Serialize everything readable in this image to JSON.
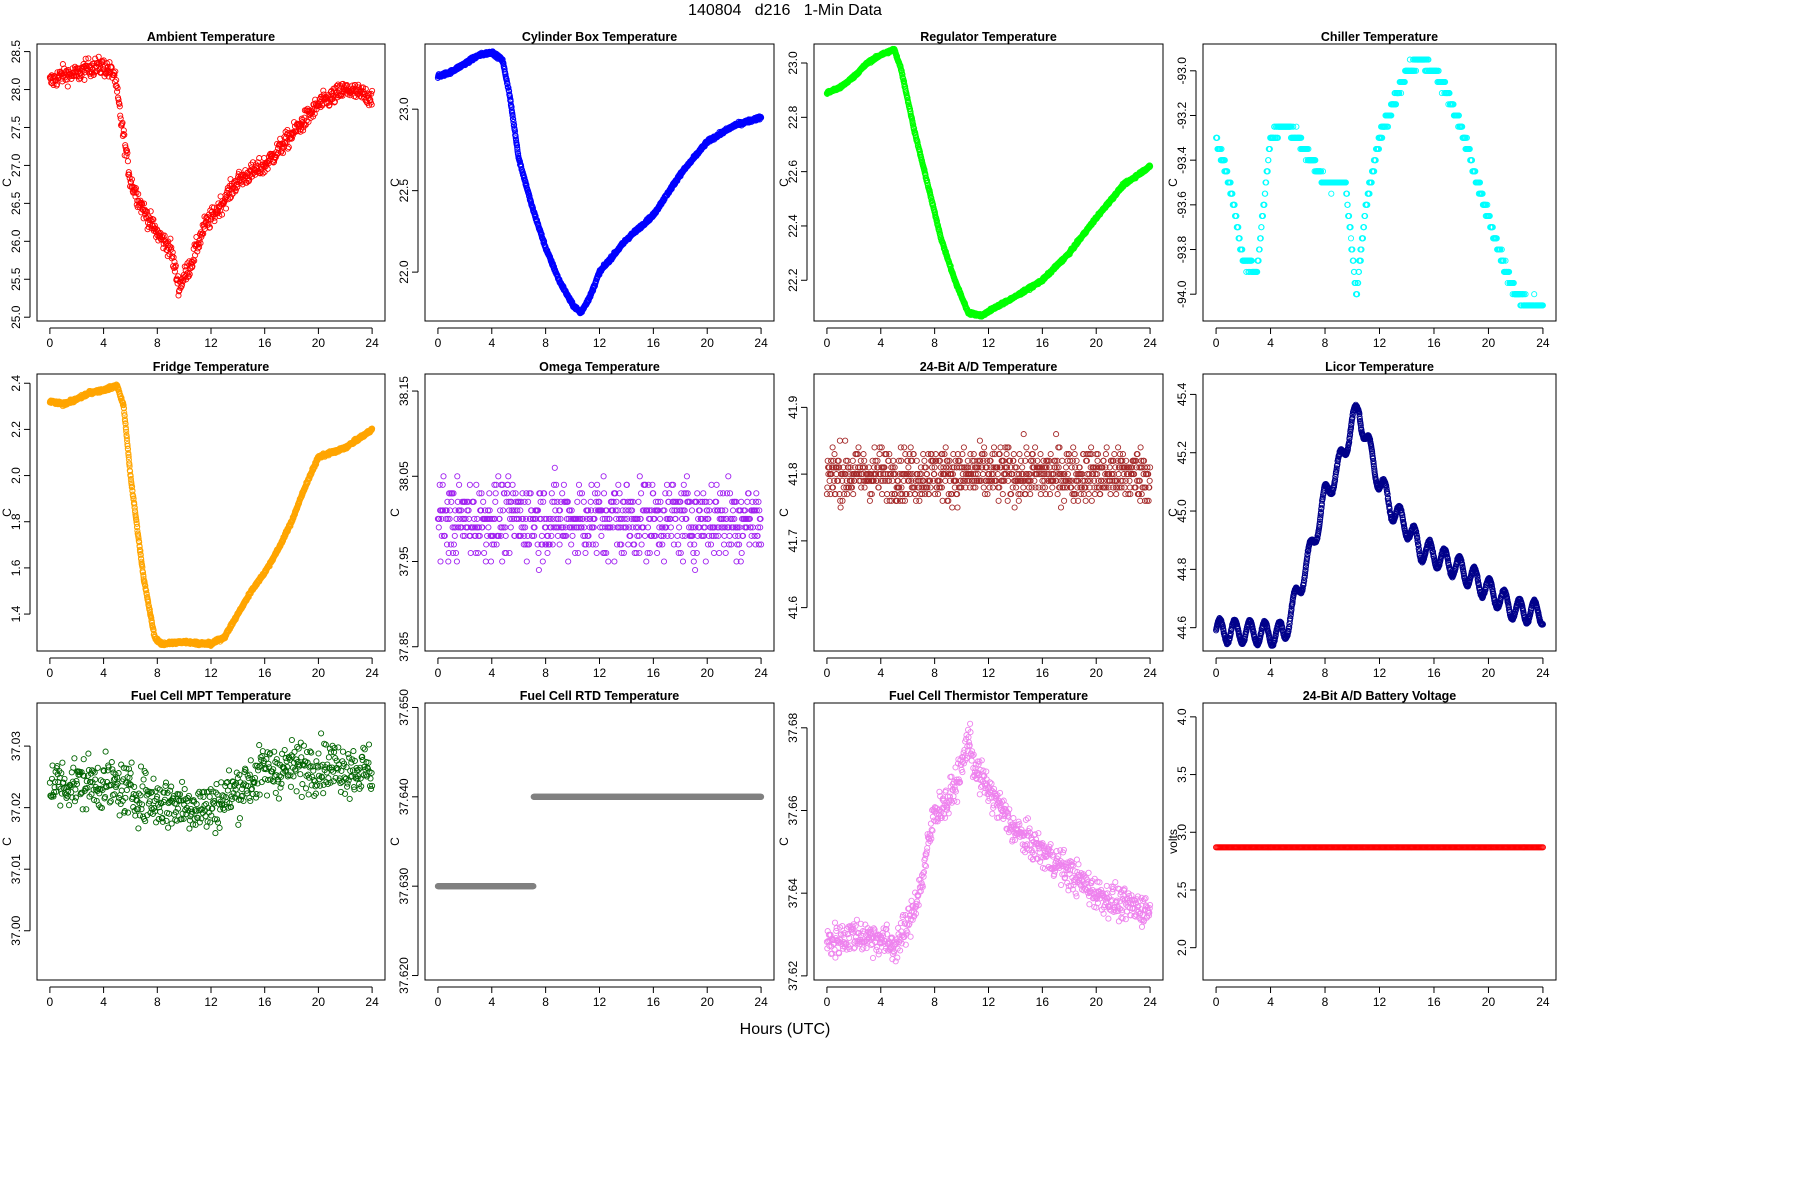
{
  "page": {
    "title": "140804   d216   1-Min Data",
    "xlabel": "Hours (UTC)"
  },
  "chart_data": [
    {
      "type": "scatter",
      "title": "Ambient Temperature",
      "ylabel": "C",
      "color": "#ff0000",
      "xlim": [
        0,
        24
      ],
      "xticks": [
        0,
        4,
        8,
        12,
        16,
        20,
        24
      ],
      "ylim": [
        24.95,
        28.6
      ],
      "yticks": [
        "25.0",
        "25.5",
        "26.0",
        "26.5",
        "27.0",
        "27.5",
        "28.0",
        "28.5"
      ],
      "shape": [
        [
          0,
          28.1
        ],
        [
          1,
          28.2
        ],
        [
          2,
          28.2
        ],
        [
          3,
          28.3
        ],
        [
          4,
          28.3
        ],
        [
          4.8,
          28.2
        ],
        [
          5.3,
          27.6
        ],
        [
          6,
          26.8
        ],
        [
          7,
          26.4
        ],
        [
          8,
          26.1
        ],
        [
          9,
          25.9
        ],
        [
          9.6,
          25.4
        ],
        [
          10.5,
          25.7
        ],
        [
          11.5,
          26.2
        ],
        [
          12,
          26.3
        ],
        [
          14,
          26.8
        ],
        [
          16,
          27.0
        ],
        [
          18,
          27.4
        ],
        [
          20,
          27.8
        ],
        [
          21,
          27.9
        ],
        [
          22,
          28.0
        ],
        [
          24,
          27.9
        ]
      ],
      "noise": 0.12,
      "quantum": 0,
      "n": 720
    },
    {
      "type": "scatter",
      "title": "Cylinder Box Temperature",
      "ylabel": "C",
      "color": "#0000ff",
      "xlim": [
        0,
        24
      ],
      "xticks": [
        0,
        4,
        8,
        12,
        16,
        20,
        24
      ],
      "ylim": [
        21.7,
        23.4
      ],
      "yticks": [
        "22.0",
        "22.5",
        "23.0"
      ],
      "shape": [
        [
          0,
          23.2
        ],
        [
          1,
          23.23
        ],
        [
          2,
          23.28
        ],
        [
          3,
          23.33
        ],
        [
          4,
          23.35
        ],
        [
          4.8,
          23.3
        ],
        [
          5.3,
          23.1
        ],
        [
          6,
          22.7
        ],
        [
          7,
          22.4
        ],
        [
          8,
          22.15
        ],
        [
          9,
          21.95
        ],
        [
          10,
          21.8
        ],
        [
          10.6,
          21.75
        ],
        [
          11.3,
          21.85
        ],
        [
          12,
          22.0
        ],
        [
          14,
          22.2
        ],
        [
          16,
          22.35
        ],
        [
          18,
          22.6
        ],
        [
          20,
          22.8
        ],
        [
          22,
          22.9
        ],
        [
          24,
          22.95
        ]
      ],
      "noise": 0.01,
      "quantum": 0,
      "n": 1440
    },
    {
      "type": "scatter",
      "title": "Regulator Temperature",
      "ylabel": "C",
      "color": "#00ff00",
      "xlim": [
        0,
        24
      ],
      "xticks": [
        0,
        4,
        8,
        12,
        16,
        20,
        24
      ],
      "ylim": [
        22.05,
        23.07
      ],
      "yticks": [
        "22.2",
        "22.4",
        "22.6",
        "22.8",
        "23.0"
      ],
      "shape": [
        [
          0,
          22.89
        ],
        [
          1,
          22.91
        ],
        [
          2,
          22.95
        ],
        [
          3,
          23.0
        ],
        [
          4,
          23.03
        ],
        [
          5,
          23.05
        ],
        [
          5.5,
          22.98
        ],
        [
          6.5,
          22.75
        ],
        [
          7.5,
          22.55
        ],
        [
          8.5,
          22.35
        ],
        [
          9.5,
          22.2
        ],
        [
          10.5,
          22.08
        ],
        [
          11.5,
          22.07
        ],
        [
          12.5,
          22.1
        ],
        [
          14,
          22.14
        ],
        [
          16,
          22.2
        ],
        [
          18,
          22.3
        ],
        [
          20,
          22.43
        ],
        [
          22,
          22.55
        ],
        [
          24,
          22.62
        ]
      ],
      "noise": 0.005,
      "quantum": 0,
      "n": 1440
    },
    {
      "type": "scatter",
      "title": "Chiller Temperature",
      "ylabel": "C",
      "color": "#00ffff",
      "xlim": [
        0,
        24
      ],
      "xticks": [
        0,
        4,
        8,
        12,
        16,
        20,
        24
      ],
      "ylim": [
        -94.12,
        -92.88
      ],
      "yticks": [
        "-94.0",
        "-93.8",
        "-93.6",
        "-93.4",
        "-93.2",
        "-93.0"
      ],
      "shape": [
        [
          0,
          -93.3
        ],
        [
          1,
          -93.5
        ],
        [
          2,
          -93.85
        ],
        [
          3,
          -93.9
        ],
        [
          3.5,
          -93.6
        ],
        [
          4,
          -93.3
        ],
        [
          5,
          -93.25
        ],
        [
          6,
          -93.3
        ],
        [
          7,
          -93.4
        ],
        [
          8,
          -93.5
        ],
        [
          9.5,
          -93.5
        ],
        [
          10.3,
          -94.0
        ],
        [
          11,
          -93.6
        ],
        [
          12,
          -93.3
        ],
        [
          13,
          -93.15
        ],
        [
          14,
          -93.0
        ],
        [
          15,
          -92.95
        ],
        [
          16,
          -93.0
        ],
        [
          17,
          -93.1
        ],
        [
          18,
          -93.25
        ],
        [
          19,
          -93.45
        ],
        [
          20,
          -93.65
        ],
        [
          21,
          -93.85
        ],
        [
          22,
          -94.0
        ],
        [
          23,
          -94.05
        ],
        [
          24,
          -94.05
        ]
      ],
      "noise": 0.02,
      "quantum": 0.05,
      "n": 900
    },
    {
      "type": "scatter",
      "title": "Fridge Temperature",
      "ylabel": "C",
      "color": "#ffa500",
      "xlim": [
        0,
        24
      ],
      "xticks": [
        0,
        4,
        8,
        12,
        16,
        20,
        24
      ],
      "ylim": [
        1.24,
        2.44
      ],
      "yticks": [
        "1.4",
        "1.6",
        "1.8",
        "2.0",
        "2.2",
        "2.4"
      ],
      "shape": [
        [
          0,
          2.32
        ],
        [
          1,
          2.31
        ],
        [
          2,
          2.33
        ],
        [
          3,
          2.36
        ],
        [
          4,
          2.37
        ],
        [
          5,
          2.39
        ],
        [
          5.5,
          2.3
        ],
        [
          6,
          2.0
        ],
        [
          7,
          1.55
        ],
        [
          7.8,
          1.3
        ],
        [
          8.3,
          1.27
        ],
        [
          10,
          1.28
        ],
        [
          12,
          1.27
        ],
        [
          13,
          1.3
        ],
        [
          14,
          1.4
        ],
        [
          15,
          1.5
        ],
        [
          16,
          1.58
        ],
        [
          17,
          1.68
        ],
        [
          18,
          1.8
        ],
        [
          19,
          1.95
        ],
        [
          20,
          2.08
        ],
        [
          21,
          2.1
        ],
        [
          22,
          2.12
        ],
        [
          23,
          2.16
        ],
        [
          24,
          2.2
        ]
      ],
      "noise": 0.007,
      "quantum": 0,
      "n": 1440
    },
    {
      "type": "scatter",
      "title": "Omega Temperature",
      "ylabel": "C",
      "color": "#a020f0",
      "xlim": [
        0,
        24
      ],
      "xticks": [
        0,
        4,
        8,
        12,
        16,
        20,
        24
      ],
      "ylim": [
        37.845,
        38.17
      ],
      "yticks": [
        "37.85",
        "37.95",
        "38.05",
        "38.15"
      ],
      "shape": [
        [
          0,
          38.0
        ],
        [
          24,
          38.0
        ]
      ],
      "noise": 0.045,
      "quantum": 0.01,
      "n": 750
    },
    {
      "type": "scatter",
      "title": "24-Bit A/D Temperature",
      "ylabel": "C",
      "color": "#a52a2a",
      "xlim": [
        0,
        24
      ],
      "xticks": [
        0,
        4,
        8,
        12,
        16,
        20,
        24
      ],
      "ylim": [
        41.535,
        41.95
      ],
      "yticks": [
        "41.6",
        "41.7",
        "41.8",
        "41.9"
      ],
      "shape": [
        [
          0,
          41.8
        ],
        [
          24,
          41.8
        ]
      ],
      "noise": 0.04,
      "quantum": 0.01,
      "n": 850
    },
    {
      "type": "scatter",
      "title": "Licor Temperature",
      "ylabel": "C",
      "color": "#00008b",
      "xlim": [
        0,
        24
      ],
      "xticks": [
        0,
        4,
        8,
        12,
        16,
        20,
        24
      ],
      "ylim": [
        44.52,
        45.47
      ],
      "yticks": [
        "44.6",
        "44.8",
        "45.0",
        "45.2",
        "45.4"
      ],
      "shape": [
        [
          0,
          44.59
        ],
        [
          4,
          44.58
        ],
        [
          5,
          44.58
        ],
        [
          6,
          44.72
        ],
        [
          7,
          44.87
        ],
        [
          8,
          45.05
        ],
        [
          9,
          45.15
        ],
        [
          10,
          45.3
        ],
        [
          10.5,
          45.35
        ],
        [
          11,
          45.25
        ],
        [
          12,
          45.1
        ],
        [
          13,
          45.0
        ],
        [
          14,
          44.95
        ],
        [
          15,
          44.87
        ],
        [
          16,
          44.85
        ],
        [
          18,
          44.8
        ],
        [
          20,
          44.73
        ],
        [
          22,
          44.66
        ],
        [
          24,
          44.65
        ]
      ],
      "wave": 0.04,
      "noise": 0.004,
      "quantum": 0,
      "n": 1440
    },
    {
      "type": "scatter",
      "title": "Fuel Cell MPT Temperature",
      "ylabel": "C",
      "color": "#006400",
      "xlim": [
        0,
        24
      ],
      "xticks": [
        0,
        4,
        8,
        12,
        16,
        20,
        24
      ],
      "ylim": [
        36.992,
        37.037
      ],
      "yticks": [
        "37.00",
        "37.01",
        "37.02",
        "37.03"
      ],
      "shape": [
        [
          0,
          37.024
        ],
        [
          4,
          37.024
        ],
        [
          8,
          37.021
        ],
        [
          12,
          37.02
        ],
        [
          16,
          37.026
        ],
        [
          20,
          37.027
        ],
        [
          24,
          37.026
        ]
      ],
      "noise": 0.0042,
      "quantum": 0,
      "n": 620
    },
    {
      "type": "scatter",
      "title": "Fuel Cell RTD Temperature",
      "ylabel": "C",
      "color": "#808080",
      "xlim": [
        0,
        24
      ],
      "xticks": [
        0,
        4,
        8,
        12,
        16,
        20,
        24
      ],
      "ylim": [
        37.6195,
        37.6505
      ],
      "yticks": [
        "37.620",
        "37.630",
        "37.640",
        "37.650"
      ],
      "shape": [
        [
          0,
          37.63
        ],
        [
          7,
          37.63
        ],
        [
          7.2,
          37.64
        ],
        [
          24,
          37.64
        ]
      ],
      "noise": 0.0005,
      "quantum": 0.01,
      "n": 1000
    },
    {
      "type": "scatter",
      "title": "Fuel Cell Thermistor Temperature",
      "ylabel": "C",
      "color": "#ee82ee",
      "xlim": [
        0,
        24
      ],
      "xticks": [
        0,
        4,
        8,
        12,
        16,
        20,
        24
      ],
      "ylim": [
        37.619,
        37.686
      ],
      "yticks": [
        "37.62",
        "37.64",
        "37.66",
        "37.68"
      ],
      "shape": [
        [
          0,
          37.628
        ],
        [
          2,
          37.63
        ],
        [
          4,
          37.629
        ],
        [
          5,
          37.627
        ],
        [
          6,
          37.632
        ],
        [
          7,
          37.642
        ],
        [
          8,
          37.66
        ],
        [
          9,
          37.662
        ],
        [
          10,
          37.67
        ],
        [
          10.5,
          37.678
        ],
        [
          11,
          37.67
        ],
        [
          12,
          37.665
        ],
        [
          14,
          37.655
        ],
        [
          16,
          37.65
        ],
        [
          18,
          37.645
        ],
        [
          20,
          37.64
        ],
        [
          22,
          37.637
        ],
        [
          24,
          37.636
        ]
      ],
      "noise": 0.004,
      "quantum": 0,
      "n": 800
    },
    {
      "type": "scatter",
      "title": "24-Bit A/D Battery Voltage",
      "ylabel": "volts",
      "color": "#ff0000",
      "xlim": [
        0,
        24
      ],
      "xticks": [
        0,
        4,
        8,
        12,
        16,
        20,
        24
      ],
      "ylim": [
        1.72,
        4.12
      ],
      "yticks": [
        "2.0",
        "2.5",
        "3.0",
        "3.5",
        "4.0"
      ],
      "shape": [
        [
          0,
          2.87
        ],
        [
          24,
          2.87
        ]
      ],
      "noise": 0,
      "quantum": 0,
      "n": 300
    }
  ]
}
